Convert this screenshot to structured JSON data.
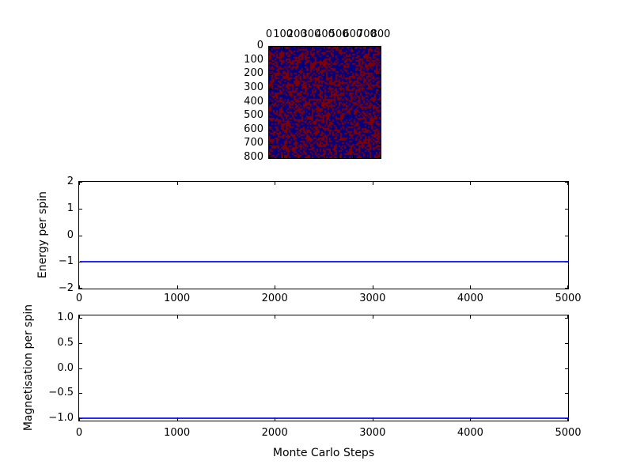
{
  "figure": {
    "background": "#ffffff"
  },
  "chart_data": [
    {
      "id": "lattice",
      "type": "heatmap",
      "title": "",
      "xlabel": "",
      "ylabel": "",
      "xlim": [
        0,
        800
      ],
      "ylim": [
        800,
        0
      ],
      "xtick_values": [
        0,
        100,
        200,
        300,
        400,
        500,
        600,
        700,
        800
      ],
      "xtick_labels": [
        "0",
        "100",
        "200",
        "300",
        "400",
        "500",
        "600",
        "700",
        "800"
      ],
      "ytick_values": [
        0,
        100,
        200,
        300,
        400,
        500,
        600,
        700,
        800
      ],
      "ytick_labels": [
        "0",
        "100",
        "200",
        "300",
        "400",
        "500",
        "600",
        "700",
        "800"
      ],
      "xticks_position": "top",
      "palette": {
        "spin_down": "#000080",
        "spin_up": "#800000"
      },
      "pattern": "random-spins",
      "fraction_spin_down_blue": 0.55,
      "grid_cells": 72
    },
    {
      "id": "energy",
      "type": "line",
      "title": "",
      "xlabel": "",
      "ylabel": "Energy per spin",
      "xlim": [
        0,
        5000
      ],
      "ylim": [
        -2,
        2
      ],
      "xtick_values": [
        0,
        1000,
        2000,
        3000,
        4000,
        5000
      ],
      "xtick_labels": [
        "0",
        "1000",
        "2000",
        "3000",
        "4000",
        "5000"
      ],
      "ytick_values": [
        2,
        1,
        0,
        -1,
        -2
      ],
      "ytick_labels": [
        "2",
        "1",
        "0",
        "−1",
        "−2"
      ],
      "grid": false,
      "series": [
        {
          "name": "energy-per-spin",
          "color": "#0000ff",
          "constant_value": -1,
          "x_range": [
            0,
            5000
          ]
        }
      ]
    },
    {
      "id": "magnetisation",
      "type": "line",
      "title": "",
      "xlabel": "Monte Carlo Steps",
      "ylabel": "Magnetisation per spin",
      "xlim": [
        0,
        5000
      ],
      "ylim": [
        -1.05,
        1.05
      ],
      "xtick_values": [
        0,
        1000,
        2000,
        3000,
        4000,
        5000
      ],
      "xtick_labels": [
        "0",
        "1000",
        "2000",
        "3000",
        "4000",
        "5000"
      ],
      "ytick_values": [
        1.0,
        0.5,
        0.0,
        -0.5,
        -1.0
      ],
      "ytick_labels": [
        "1.0",
        "0.5",
        "0.0",
        "−0.5",
        "−1.0"
      ],
      "grid": false,
      "series": [
        {
          "name": "magnetisation-per-spin",
          "color": "#0000ff",
          "constant_value": -1.0,
          "x_range": [
            0,
            5000
          ]
        }
      ]
    }
  ]
}
